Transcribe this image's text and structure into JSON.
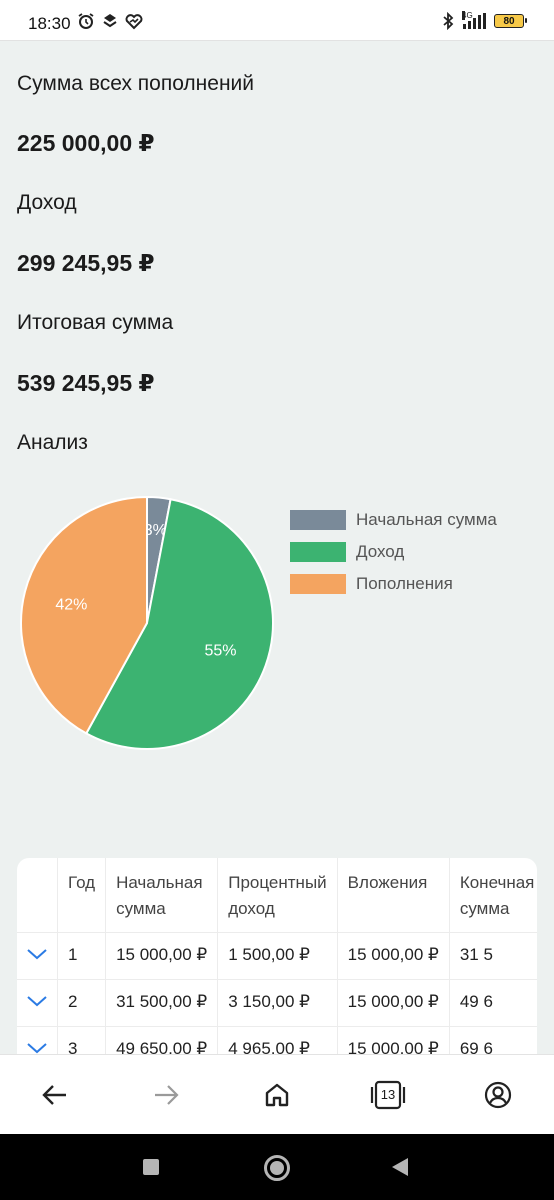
{
  "status_bar": {
    "time": "18:30",
    "network_label": "4G",
    "battery_level": "80"
  },
  "summary": [
    {
      "label": "Сумма всех пополнений",
      "value": "225 000,00 ₽"
    },
    {
      "label": "Доход",
      "value": "299 245,95 ₽"
    },
    {
      "label": "Итоговая сумма",
      "value": "539 245,95 ₽"
    }
  ],
  "analysis_title": "Анализ",
  "chart_data": {
    "type": "pie",
    "slices": [
      {
        "label": "Начальная сумма",
        "value": 3,
        "display": "3%",
        "color": "#7a8a99"
      },
      {
        "label": "Доход",
        "value": 55,
        "display": "55%",
        "color": "#3cb371"
      },
      {
        "label": "Пополнения",
        "value": 42,
        "display": "42%",
        "color": "#f4a460"
      }
    ],
    "legend_position": "right"
  },
  "table": {
    "headers": [
      "",
      "Год",
      "Начальная сумма",
      "Процентный доход",
      "Вложения",
      "Конечная сумма"
    ],
    "rows": [
      [
        "1",
        "15 000,00 ₽",
        "1 500,00 ₽",
        "15 000,00 ₽",
        "31 5"
      ],
      [
        "2",
        "31 500,00 ₽",
        "3 150,00 ₽",
        "15 000,00 ₽",
        "49 6"
      ],
      [
        "3",
        "49 650,00 ₽",
        "4 965,00 ₽",
        "15 000,00 ₽",
        "69 6"
      ]
    ]
  },
  "bottom_nav": {
    "tabs_count": "13"
  }
}
